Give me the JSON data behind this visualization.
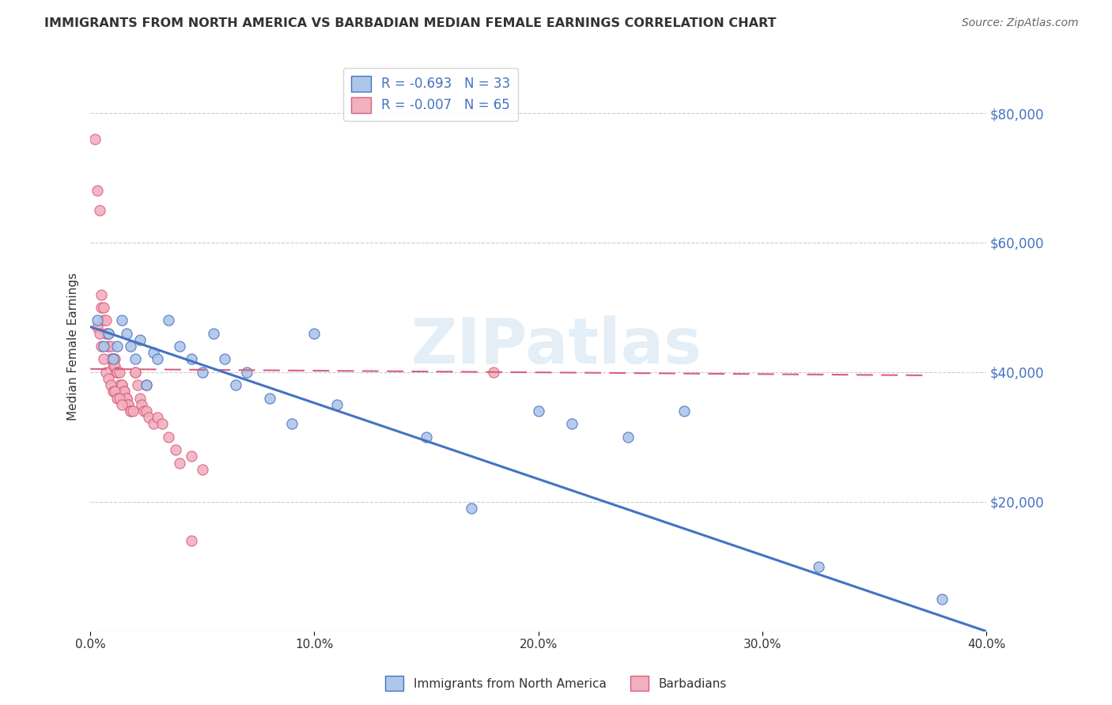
{
  "title": "IMMIGRANTS FROM NORTH AMERICA VS BARBADIAN MEDIAN FEMALE EARNINGS CORRELATION CHART",
  "source": "Source: ZipAtlas.com",
  "ylabel": "Median Female Earnings",
  "xlim": [
    0.0,
    0.4
  ],
  "ylim": [
    0,
    88000
  ],
  "ytick_labels": [
    "$20,000",
    "$40,000",
    "$60,000",
    "$80,000"
  ],
  "ytick_vals": [
    20000,
    40000,
    60000,
    80000
  ],
  "grid_ytick_vals": [
    20000,
    40000,
    60000,
    80000
  ],
  "xtick_labels": [
    "0.0%",
    "10.0%",
    "20.0%",
    "30.0%",
    "40.0%"
  ],
  "xtick_vals": [
    0.0,
    0.1,
    0.2,
    0.3,
    0.4
  ],
  "blue_color": "#aec6e8",
  "pink_color": "#f2afc0",
  "blue_line_color": "#4472c4",
  "pink_line_color": "#d95f7a",
  "R_blue": -0.693,
  "N_blue": 33,
  "R_pink": -0.007,
  "N_pink": 65,
  "legend_label_blue": "Immigrants from North America",
  "legend_label_pink": "Barbadians",
  "watermark": "ZIPatlas",
  "grid_color": "#cccccc",
  "background_color": "#ffffff",
  "blue_trend_x": [
    0.0,
    0.4
  ],
  "blue_trend_y": [
    47000,
    0
  ],
  "pink_trend_x": [
    0.0,
    0.375
  ],
  "pink_trend_y": [
    40500,
    39500
  ],
  "blue_scatter_x": [
    0.003,
    0.006,
    0.008,
    0.01,
    0.012,
    0.014,
    0.016,
    0.018,
    0.02,
    0.022,
    0.025,
    0.028,
    0.03,
    0.035,
    0.04,
    0.045,
    0.05,
    0.055,
    0.06,
    0.065,
    0.07,
    0.08,
    0.09,
    0.1,
    0.11,
    0.15,
    0.17,
    0.2,
    0.215,
    0.24,
    0.265,
    0.325,
    0.38
  ],
  "blue_scatter_y": [
    48000,
    44000,
    46000,
    42000,
    44000,
    48000,
    46000,
    44000,
    42000,
    45000,
    38000,
    43000,
    42000,
    48000,
    44000,
    42000,
    40000,
    46000,
    42000,
    38000,
    40000,
    36000,
    32000,
    46000,
    35000,
    30000,
    19000,
    34000,
    32000,
    30000,
    34000,
    10000,
    5000
  ],
  "pink_scatter_x": [
    0.002,
    0.003,
    0.003,
    0.004,
    0.005,
    0.005,
    0.006,
    0.006,
    0.007,
    0.007,
    0.008,
    0.008,
    0.009,
    0.009,
    0.01,
    0.01,
    0.01,
    0.01,
    0.011,
    0.011,
    0.012,
    0.012,
    0.013,
    0.013,
    0.014,
    0.014,
    0.015,
    0.015,
    0.016,
    0.016,
    0.017,
    0.017,
    0.018,
    0.018,
    0.019,
    0.02,
    0.021,
    0.022,
    0.023,
    0.024,
    0.025,
    0.026,
    0.028,
    0.03,
    0.032,
    0.035,
    0.038,
    0.04,
    0.045,
    0.05,
    0.004,
    0.005,
    0.006,
    0.007,
    0.008,
    0.009,
    0.01,
    0.011,
    0.012,
    0.013,
    0.014,
    0.02,
    0.025,
    0.045,
    0.18
  ],
  "pink_scatter_y": [
    76000,
    68000,
    47000,
    65000,
    52000,
    50000,
    50000,
    48000,
    48000,
    46000,
    46000,
    44000,
    44000,
    42000,
    42000,
    42000,
    42000,
    41000,
    42000,
    41000,
    40000,
    40000,
    40000,
    38000,
    38000,
    38000,
    37000,
    37000,
    36000,
    36000,
    35000,
    35000,
    34000,
    34000,
    34000,
    40000,
    38000,
    36000,
    35000,
    34000,
    34000,
    33000,
    32000,
    33000,
    32000,
    30000,
    28000,
    26000,
    27000,
    25000,
    46000,
    44000,
    42000,
    40000,
    39000,
    38000,
    37000,
    37000,
    36000,
    36000,
    35000,
    40000,
    38000,
    14000,
    40000
  ]
}
